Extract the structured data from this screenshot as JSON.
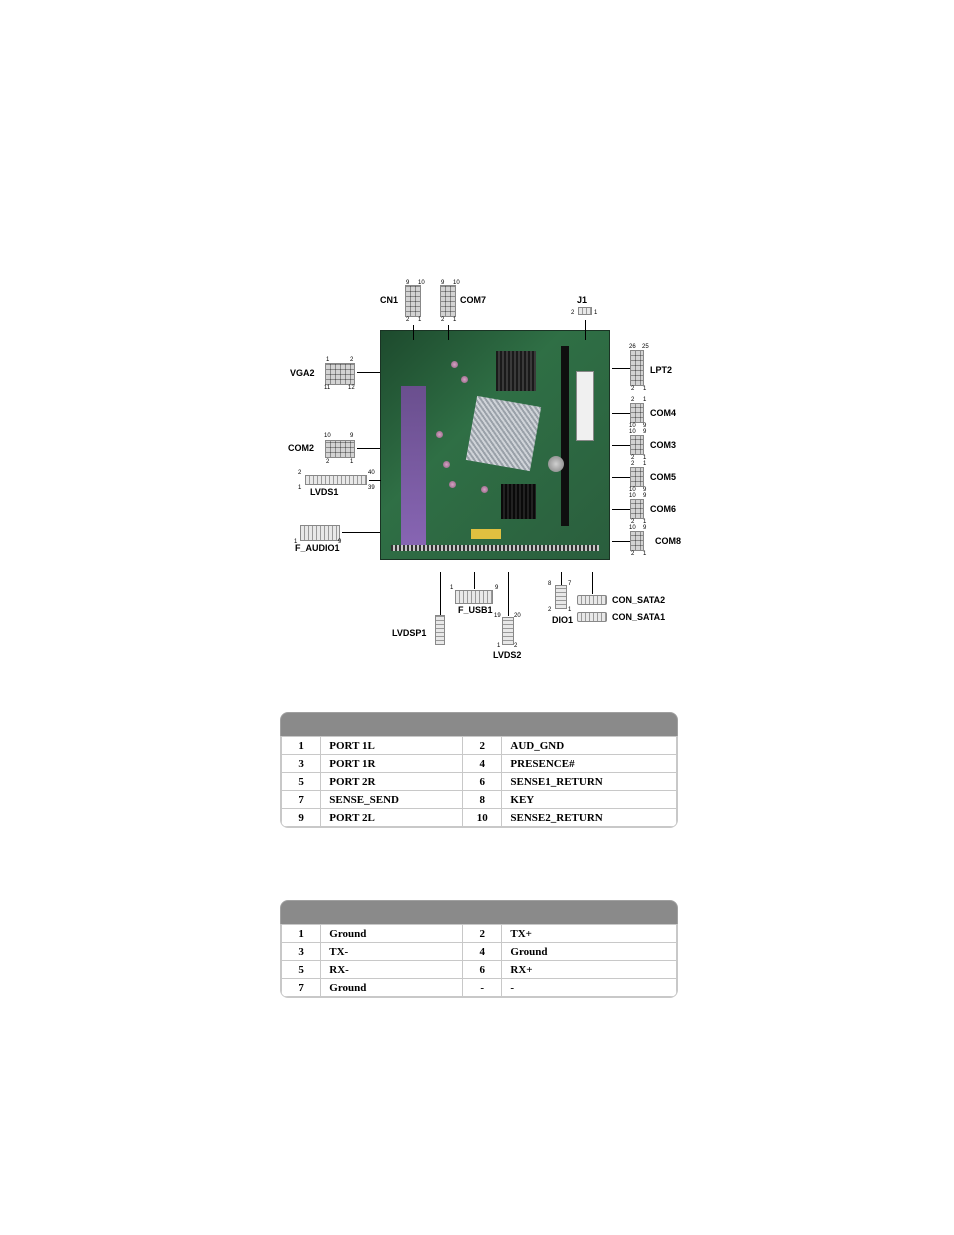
{
  "diagram": {
    "labels": {
      "cn1": "CN1",
      "com7": "COM7",
      "j1": "J1",
      "vga2": "VGA2",
      "com2": "COM2",
      "lvds1": "LVDS1",
      "f_audio1": "F_AUDIO1",
      "lvdsp1": "LVDSP1",
      "f_usb1": "F_USB1",
      "lvds2": "LVDS2",
      "dio1": "DIO1",
      "con_sata1": "CON_SATA1",
      "con_sata2": "CON_SATA2",
      "lpt2": "LPT2",
      "com4": "COM4",
      "com3": "COM3",
      "com5": "COM5",
      "com6": "COM6",
      "com8": "COM8"
    }
  },
  "table_audio": {
    "rows": [
      {
        "n1": "1",
        "s1": "PORT 1L",
        "n2": "2",
        "s2": "AUD_GND"
      },
      {
        "n1": "3",
        "s1": "PORT 1R",
        "n2": "4",
        "s2": "PRESENCE#"
      },
      {
        "n1": "5",
        "s1": "PORT 2R",
        "n2": "6",
        "s2": "SENSE1_RETURN"
      },
      {
        "n1": "7",
        "s1": "SENSE_SEND",
        "n2": "8",
        "s2": "KEY"
      },
      {
        "n1": "9",
        "s1": "PORT 2L",
        "n2": "10",
        "s2": "SENSE2_RETURN"
      }
    ]
  },
  "table_sata": {
    "rows": [
      {
        "n1": "1",
        "s1": "Ground",
        "n2": "2",
        "s2": "TX+"
      },
      {
        "n1": "3",
        "s1": "TX-",
        "n2": "4",
        "s2": "Ground"
      },
      {
        "n1": "5",
        "s1": "RX-",
        "n2": "6",
        "s2": "RX+"
      },
      {
        "n1": "7",
        "s1": "Ground",
        "n2": "-",
        "s2": "-"
      }
    ]
  },
  "colors": {
    "table_header_bg": "#8a8a8a",
    "cell_border": "#c8c8c8"
  }
}
